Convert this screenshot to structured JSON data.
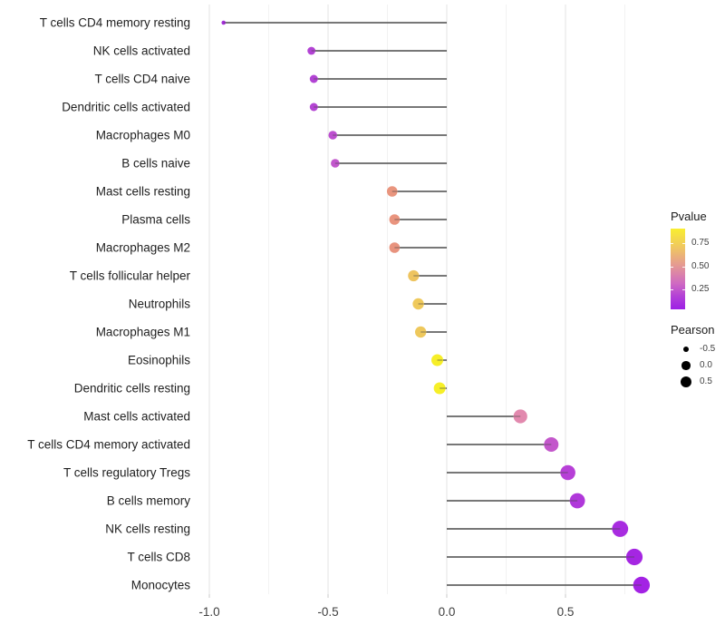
{
  "chart_data": {
    "type": "lollipop",
    "title": "",
    "xlabel": "",
    "ylabel": "",
    "x_axis": {
      "tick_labels": [
        "-1.0",
        "-0.5",
        "0.0",
        "0.5"
      ],
      "tick_values": [
        -1.0,
        -0.5,
        0.0,
        0.5
      ],
      "minor_tick_values": [
        -0.75,
        -0.25,
        0.25,
        0.75
      ],
      "range": [
        -1.05,
        0.9
      ],
      "grid": true
    },
    "stem_baseline": 0.0,
    "points": [
      {
        "label": "T cells CD4 memory resting",
        "pearson": -0.94,
        "pvalue_approx": 0.03,
        "color": "#a62ddb"
      },
      {
        "label": "NK cells activated",
        "pearson": -0.57,
        "pvalue_approx": 0.07,
        "color": "#b242d4"
      },
      {
        "label": "T cells CD4 naive",
        "pearson": -0.56,
        "pvalue_approx": 0.07,
        "color": "#b243d4"
      },
      {
        "label": "Dendritic cells activated",
        "pearson": -0.56,
        "pvalue_approx": 0.08,
        "color": "#b445d3"
      },
      {
        "label": "Macrophages M0",
        "pearson": -0.48,
        "pvalue_approx": 0.1,
        "color": "#bd4fd0"
      },
      {
        "label": "B cells naive",
        "pearson": -0.47,
        "pvalue_approx": 0.12,
        "color": "#c257cc"
      },
      {
        "label": "Mast cells resting",
        "pearson": -0.23,
        "pvalue_approx": 0.45,
        "color": "#e9957e"
      },
      {
        "label": "Plasma cells",
        "pearson": -0.22,
        "pvalue_approx": 0.45,
        "color": "#e9947e"
      },
      {
        "label": "Macrophages M2",
        "pearson": -0.22,
        "pvalue_approx": 0.44,
        "color": "#e8937e"
      },
      {
        "label": "T cells follicular helper",
        "pearson": -0.14,
        "pvalue_approx": 0.62,
        "color": "#eec45f"
      },
      {
        "label": "Neutrophils",
        "pearson": -0.12,
        "pvalue_approx": 0.64,
        "color": "#efc95b"
      },
      {
        "label": "Macrophages M1",
        "pearson": -0.11,
        "pvalue_approx": 0.63,
        "color": "#eec85c"
      },
      {
        "label": "Eosinophils",
        "pearson": -0.04,
        "pvalue_approx": 0.85,
        "color": "#f6ee28"
      },
      {
        "label": "Dendritic cells resting",
        "pearson": -0.03,
        "pvalue_approx": 0.86,
        "color": "#f6ef28"
      },
      {
        "label": "Mast cells activated",
        "pearson": 0.31,
        "pvalue_approx": 0.35,
        "color": "#e289ae"
      },
      {
        "label": "T cells CD4 memory activated",
        "pearson": 0.44,
        "pvalue_approx": 0.13,
        "color": "#c357cb"
      },
      {
        "label": "T cells regulatory  Tregs",
        "pearson": 0.51,
        "pvalue_approx": 0.08,
        "color": "#b740d7"
      },
      {
        "label": "B cells memory",
        "pearson": 0.55,
        "pvalue_approx": 0.06,
        "color": "#b038da"
      },
      {
        "label": "NK cells resting",
        "pearson": 0.73,
        "pvalue_approx": 0.04,
        "color": "#a82ce0"
      },
      {
        "label": "T cells CD8",
        "pearson": 0.79,
        "pvalue_approx": 0.02,
        "color": "#a526e2"
      },
      {
        "label": "Monocytes",
        "pearson": 0.82,
        "pvalue_approx": 0.02,
        "color": "#a322e4"
      }
    ],
    "legend": {
      "pvalue": {
        "title": "Pvalue",
        "ticks": [
          "0.75",
          "0.50",
          "0.25"
        ],
        "gradient_stops": [
          {
            "pos": "0%",
            "color": "#f9ee30"
          },
          {
            "pos": "22%",
            "color": "#f0c95e"
          },
          {
            "pos": "45%",
            "color": "#e59a92"
          },
          {
            "pos": "68%",
            "color": "#cf6ac2"
          },
          {
            "pos": "85%",
            "color": "#b13ed8"
          },
          {
            "pos": "100%",
            "color": "#9d20e5"
          }
        ],
        "value_range": [
          0.05,
          0.9
        ]
      },
      "pearson": {
        "title": "Pearson",
        "items": [
          {
            "label": "-0.5",
            "radius": 3.4
          },
          {
            "label": "0.0",
            "radius": 4.7
          },
          {
            "label": "0.5",
            "radius": 6.0
          }
        ]
      }
    },
    "style": {
      "stem_color": "#4a4a4a",
      "major_grid_color": "#e3e3e3",
      "minor_grid_color": "#f2f2f2",
      "axis_text_color": "#404040",
      "category_text_color": "#1f1f1f",
      "background": "#ffffff"
    }
  }
}
